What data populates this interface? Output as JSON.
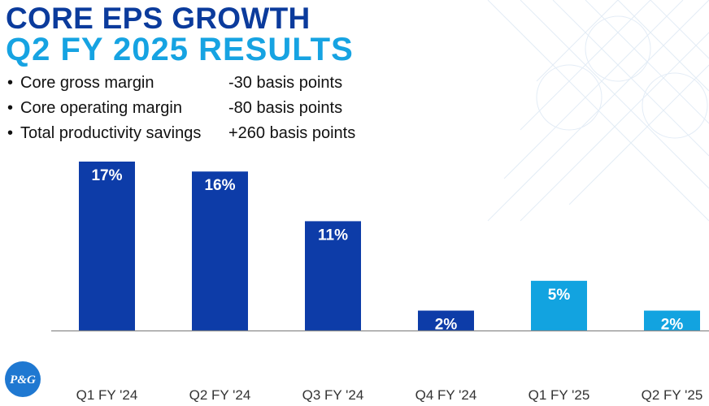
{
  "header": {
    "title": "CORE EPS GROWTH",
    "subtitle": "Q2 FY 2025 RESULTS"
  },
  "bullets": [
    {
      "label": "Core gross margin",
      "value": "-30 basis points"
    },
    {
      "label": "Core operating margin",
      "value": "-80 basis points"
    },
    {
      "label": "Total productivity savings",
      "value": "+260 basis points"
    }
  ],
  "bullet_glyph": "•",
  "logo": {
    "text": "P&G"
  },
  "colors": {
    "title": "#0b3b9c",
    "subtitle": "#16a3e2",
    "bar_dark": "#0d3ca8",
    "bar_light": "#12a3e0",
    "axis": "#8a8a8a",
    "logo": "#1f78d1"
  },
  "chart_data": {
    "type": "bar",
    "categories": [
      "Q1 FY '24",
      "Q2 FY '24",
      "Q3 FY '24",
      "Q4 FY '24",
      "Q1 FY '25",
      "Q2 FY '25"
    ],
    "values": [
      17,
      16,
      11,
      2,
      5,
      2
    ],
    "data_labels": [
      "17%",
      "16%",
      "11%",
      "2%",
      "5%",
      "2%"
    ],
    "bar_colors": [
      "#0d3ca8",
      "#0d3ca8",
      "#0d3ca8",
      "#0d3ca8",
      "#12a3e0",
      "#12a3e0"
    ],
    "title": "",
    "xlabel": "",
    "ylabel": "",
    "ylim": [
      0,
      17
    ],
    "grid": false,
    "legend": "none"
  }
}
